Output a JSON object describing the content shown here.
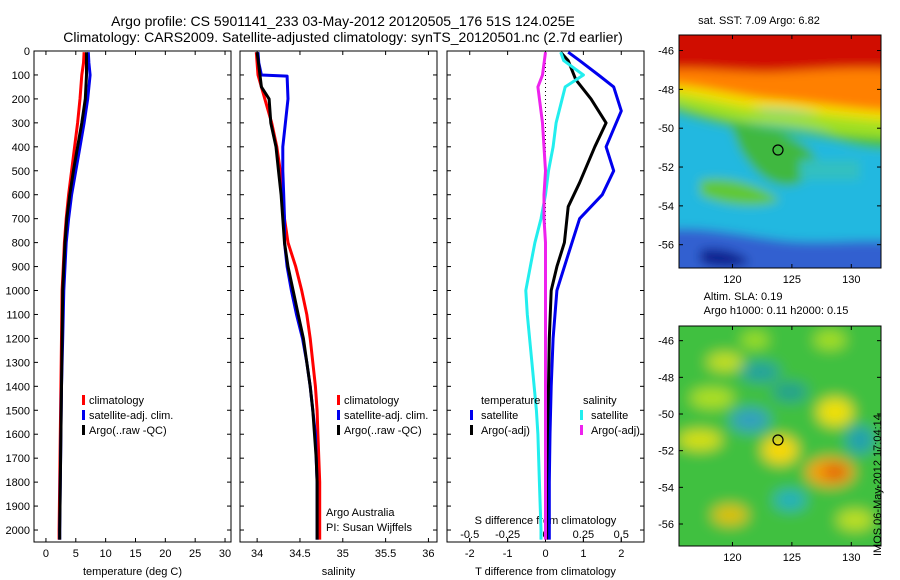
{
  "title_line1": "Argo profile: CS 5901141_233 03-May-2012 20120505_176 51S 124.025E",
  "title_line2": "Climatology: CARS2009. Satellite-adjusted climatology: synTS_20120501.nc (2.7d earlier)",
  "side_text": "IMOS 06-May-2012 17:04:14",
  "colors": {
    "red": "#ff0000",
    "blue": "#0000ee",
    "black": "#000000",
    "cyan": "#22eeee",
    "magenta": "#ee22ee"
  },
  "chart_data": [
    {
      "id": "temperature",
      "type": "line",
      "xlabel": "temperature (deg C)",
      "ylabel": "",
      "xlim": [
        -2,
        31
      ],
      "ylim": [
        2050,
        0
      ],
      "x_ticks": [
        0,
        5,
        10,
        15,
        20,
        25,
        30
      ],
      "x_tick_labels": [
        "0",
        "5",
        "10",
        "15",
        "20",
        "25",
        "30"
      ],
      "y_ticks": [
        0,
        100,
        200,
        300,
        400,
        500,
        600,
        700,
        800,
        900,
        1000,
        1100,
        1200,
        1300,
        1400,
        1500,
        1600,
        1700,
        1800,
        1900,
        2000
      ],
      "y_tick_labels": [
        "0",
        "100",
        "200",
        "300",
        "400",
        "500",
        "600",
        "700",
        "800",
        "900",
        "1000",
        "1100",
        "1200",
        "1300",
        "1400",
        "1500",
        "1600",
        "1700",
        "1800",
        "1900",
        "2000"
      ],
      "legend_position": "lower-right",
      "legend": [
        {
          "name": "climatology",
          "color": "#ff0000"
        },
        {
          "name": "satellite-adj. clim.",
          "color": "#0000ee"
        },
        {
          "name": "Argo(..raw -QC)",
          "color": "#000000"
        }
      ],
      "series": [
        {
          "name": "climatology",
          "color": "#ff0000",
          "points": [
            [
              6.4,
              5
            ],
            [
              6.3,
              50
            ],
            [
              6.0,
              100
            ],
            [
              5.7,
              200
            ],
            [
              5.3,
              300
            ],
            [
              4.8,
              400
            ],
            [
              4.3,
              500
            ],
            [
              3.8,
              600
            ],
            [
              3.4,
              700
            ],
            [
              3.1,
              800
            ],
            [
              2.9,
              900
            ],
            [
              2.7,
              1000
            ],
            [
              2.6,
              1200
            ],
            [
              2.5,
              1400
            ],
            [
              2.4,
              1600
            ],
            [
              2.3,
              1800
            ],
            [
              2.2,
              2000
            ],
            [
              2.2,
              2040
            ]
          ]
        },
        {
          "name": "satellite-adj. clim.",
          "color": "#0000ee",
          "points": [
            [
              7.1,
              5
            ],
            [
              7.2,
              50
            ],
            [
              7.4,
              100
            ],
            [
              7.0,
              200
            ],
            [
              6.4,
              300
            ],
            [
              5.7,
              400
            ],
            [
              5.0,
              500
            ],
            [
              4.3,
              600
            ],
            [
              3.8,
              700
            ],
            [
              3.4,
              800
            ],
            [
              3.2,
              900
            ],
            [
              3.0,
              1000
            ],
            [
              2.8,
              1200
            ],
            [
              2.6,
              1400
            ],
            [
              2.5,
              1600
            ],
            [
              2.4,
              1800
            ],
            [
              2.3,
              2000
            ],
            [
              2.3,
              2040
            ]
          ]
        },
        {
          "name": "Argo(..raw -QC)",
          "color": "#000000",
          "points": [
            [
              6.8,
              5
            ],
            [
              6.8,
              50
            ],
            [
              6.8,
              100
            ],
            [
              6.6,
              200
            ],
            [
              6.0,
              300
            ],
            [
              5.3,
              400
            ],
            [
              4.6,
              500
            ],
            [
              4.0,
              600
            ],
            [
              3.5,
              700
            ],
            [
              3.2,
              800
            ],
            [
              3.0,
              900
            ],
            [
              2.8,
              1000
            ],
            [
              2.7,
              1200
            ],
            [
              2.6,
              1400
            ],
            [
              2.5,
              1600
            ],
            [
              2.4,
              1800
            ],
            [
              2.3,
              2000
            ],
            [
              2.3,
              2040
            ]
          ]
        }
      ]
    },
    {
      "id": "salinity",
      "type": "line",
      "xlabel": "salinity",
      "xlim": [
        33.8,
        36.1
      ],
      "ylim": [
        2050,
        0
      ],
      "x_ticks": [
        34,
        34.5,
        35,
        35.5,
        36
      ],
      "x_tick_labels": [
        "34",
        "34.5",
        "35",
        "35.5",
        "36"
      ],
      "y_ticks": [
        0,
        100,
        200,
        300,
        400,
        500,
        600,
        700,
        800,
        900,
        1000,
        1100,
        1200,
        1300,
        1400,
        1500,
        1600,
        1700,
        1800,
        1900,
        2000
      ],
      "legend_position": "lower-right",
      "legend": [
        {
          "name": "climatology",
          "color": "#ff0000"
        },
        {
          "name": "satellite-adj. clim.",
          "color": "#0000ee"
        },
        {
          "name": "Argo(..raw -QC)",
          "color": "#000000"
        }
      ],
      "annotation": [
        "Argo Australia",
        "PI: Susan Wijffels"
      ],
      "series": [
        {
          "name": "climatology",
          "color": "#ff0000",
          "points": [
            [
              33.99,
              5
            ],
            [
              34.01,
              100
            ],
            [
              34.09,
              200
            ],
            [
              34.17,
              300
            ],
            [
              34.23,
              400
            ],
            [
              34.27,
              500
            ],
            [
              34.29,
              600
            ],
            [
              34.32,
              700
            ],
            [
              34.36,
              800
            ],
            [
              34.45,
              900
            ],
            [
              34.52,
              1000
            ],
            [
              34.58,
              1100
            ],
            [
              34.62,
              1200
            ],
            [
              34.65,
              1300
            ],
            [
              34.68,
              1400
            ],
            [
              34.7,
              1500
            ],
            [
              34.71,
              1600
            ],
            [
              34.72,
              1700
            ],
            [
              34.73,
              1800
            ],
            [
              34.73,
              1900
            ],
            [
              34.73,
              2000
            ],
            [
              34.73,
              2040
            ]
          ]
        },
        {
          "name": "satellite-adj. clim.",
          "color": "#0000ee",
          "points": [
            [
              34.01,
              5
            ],
            [
              34.02,
              50
            ],
            [
              34.05,
              100
            ],
            [
              34.35,
              105
            ],
            [
              34.36,
              200
            ],
            [
              34.33,
              300
            ],
            [
              34.3,
              400
            ],
            [
              34.3,
              500
            ],
            [
              34.31,
              600
            ],
            [
              34.32,
              700
            ],
            [
              34.32,
              800
            ],
            [
              34.35,
              900
            ],
            [
              34.4,
              1000
            ],
            [
              34.46,
              1100
            ],
            [
              34.53,
              1200
            ],
            [
              34.58,
              1300
            ],
            [
              34.62,
              1400
            ],
            [
              34.65,
              1500
            ],
            [
              34.68,
              1600
            ],
            [
              34.69,
              1700
            ],
            [
              34.7,
              1800
            ],
            [
              34.7,
              1900
            ],
            [
              34.7,
              2000
            ],
            [
              34.7,
              2040
            ]
          ]
        },
        {
          "name": "Argo(..raw -QC)",
          "color": "#000000",
          "points": [
            [
              34.0,
              5
            ],
            [
              34.02,
              60
            ],
            [
              34.05,
              150
            ],
            [
              34.14,
              200
            ],
            [
              34.16,
              300
            ],
            [
              34.22,
              400
            ],
            [
              34.25,
              500
            ],
            [
              34.28,
              600
            ],
            [
              34.3,
              700
            ],
            [
              34.32,
              800
            ],
            [
              34.36,
              900
            ],
            [
              34.42,
              1000
            ],
            [
              34.48,
              1100
            ],
            [
              34.54,
              1200
            ],
            [
              34.58,
              1300
            ],
            [
              34.62,
              1400
            ],
            [
              34.65,
              1500
            ],
            [
              34.67,
              1600
            ],
            [
              34.69,
              1700
            ],
            [
              34.7,
              1800
            ],
            [
              34.7,
              1900
            ],
            [
              34.7,
              2000
            ],
            [
              34.7,
              2040
            ]
          ]
        }
      ]
    },
    {
      "id": "difference",
      "type": "line",
      "xlabel": "T difference from climatology",
      "top_axis_label": "S difference from climatology",
      "xlim": [
        -2.6,
        2.6
      ],
      "ylim": [
        2050,
        0
      ],
      "x_ticks": [
        -2,
        -1,
        0,
        1,
        2
      ],
      "x_tick_labels": [
        "-2",
        "-1",
        "0",
        "1",
        "2"
      ],
      "s_ticks": [
        -0.5,
        -0.25,
        0,
        0.25,
        0.5
      ],
      "s_tick_labels": [
        "-0.5",
        "-0.25",
        "0",
        "0.25",
        "0.5"
      ],
      "zero_line": true,
      "legend_position": "lower-center",
      "legend_groups": [
        {
          "title": "temperature",
          "items": [
            {
              "name": "satellite",
              "color": "#0000ee"
            },
            {
              "name": "Argo(-adj)",
              "color": "#000000"
            }
          ]
        },
        {
          "title": "salinity",
          "items": [
            {
              "name": "satellite",
              "color": "#22eeee"
            },
            {
              "name": "Argo(-adj)",
              "color": "#ee22ee"
            }
          ]
        }
      ],
      "series": [
        {
          "name": "temperature satellite",
          "color": "#0000ee",
          "units": "T",
          "points": [
            [
              0.6,
              5
            ],
            [
              0.9,
              40
            ],
            [
              1.4,
              100
            ],
            [
              1.8,
              150
            ],
            [
              2.0,
              250
            ],
            [
              1.6,
              400
            ],
            [
              1.8,
              500
            ],
            [
              1.5,
              600
            ],
            [
              0.9,
              700
            ],
            [
              0.6,
              850
            ],
            [
              0.3,
              1000
            ],
            [
              0.2,
              1200
            ],
            [
              0.15,
              1400
            ],
            [
              0.12,
              1600
            ],
            [
              0.1,
              1800
            ],
            [
              0.1,
              2000
            ],
            [
              0.1,
              2040
            ]
          ]
        },
        {
          "name": "temperature Argo(-adj)",
          "color": "#000000",
          "units": "T",
          "points": [
            [
              0.4,
              5
            ],
            [
              0.6,
              40
            ],
            [
              0.8,
              120
            ],
            [
              1.2,
              200
            ],
            [
              1.6,
              300
            ],
            [
              1.3,
              400
            ],
            [
              0.9,
              550
            ],
            [
              0.6,
              650
            ],
            [
              0.5,
              800
            ],
            [
              0.3,
              900
            ],
            [
              0.15,
              1000
            ],
            [
              0.1,
              1200
            ],
            [
              0.08,
              1400
            ],
            [
              0.05,
              1600
            ],
            [
              0.03,
              1800
            ],
            [
              0.03,
              2000
            ],
            [
              0.03,
              2040
            ]
          ]
        },
        {
          "name": "salinity satellite",
          "color": "#22eeee",
          "units": "S",
          "points": [
            [
              0.1,
              5
            ],
            [
              0.12,
              40
            ],
            [
              0.25,
              100
            ],
            [
              0.13,
              150
            ],
            [
              0.07,
              300
            ],
            [
              0.05,
              400
            ],
            [
              0.02,
              500
            ],
            [
              0.0,
              600
            ],
            [
              -0.03,
              700
            ],
            [
              -0.07,
              800
            ],
            [
              -0.1,
              900
            ],
            [
              -0.13,
              1000
            ],
            [
              -0.12,
              1100
            ],
            [
              -0.09,
              1300
            ],
            [
              -0.06,
              1500
            ],
            [
              -0.05,
              1600
            ],
            [
              -0.04,
              1800
            ],
            [
              -0.03,
              2000
            ],
            [
              -0.03,
              2040
            ]
          ]
        },
        {
          "name": "salinity Argo(-adj)",
          "color": "#ee22ee",
          "units": "S",
          "points": [
            [
              0.0,
              5
            ],
            [
              -0.02,
              100
            ],
            [
              -0.05,
              150
            ],
            [
              -0.02,
              300
            ],
            [
              -0.01,
              400
            ],
            [
              0.0,
              500
            ],
            [
              -0.01,
              600
            ],
            [
              -0.01,
              700
            ],
            [
              0.0,
              800
            ],
            [
              0.0,
              1000
            ],
            [
              0.0,
              1200
            ],
            [
              0.0,
              1400
            ],
            [
              0.0,
              1600
            ],
            [
              0.0,
              1800
            ],
            [
              0.0,
              2000
            ],
            [
              0.0,
              2040
            ]
          ]
        }
      ]
    },
    {
      "id": "sst_map",
      "type": "heatmap",
      "title": "sat. SST: 7.09  Argo: 6.82",
      "xlim": [
        115.5,
        132.5
      ],
      "ylim": [
        -57.2,
        -45.2
      ],
      "x_ticks": [
        120,
        125,
        130
      ],
      "x_tick_labels": [
        "120",
        "125",
        "130"
      ],
      "y_ticks": [
        -46,
        -48,
        -50,
        -52,
        -54,
        -56
      ],
      "y_tick_labels": [
        "-46",
        "-48",
        "-50",
        "-52",
        "-54",
        "-56"
      ],
      "marker": {
        "lon": 124.025,
        "lat": -51.0
      }
    },
    {
      "id": "sla_map",
      "type": "heatmap",
      "title": "Altim. SLA: 0.19",
      "subtitle": "Argo h1000: 0.11  h2000: 0.15",
      "xlim": [
        115.5,
        132.5
      ],
      "ylim": [
        -57.2,
        -45.2
      ],
      "x_ticks": [
        120,
        125,
        130
      ],
      "x_tick_labels": [
        "120",
        "125",
        "130"
      ],
      "y_ticks": [
        -46,
        -48,
        -50,
        -52,
        -54,
        -56
      ],
      "y_tick_labels": [
        "-46",
        "-48",
        "-50",
        "-52",
        "-54",
        "-56"
      ],
      "marker": {
        "lon": 124.025,
        "lat": -51.0
      }
    }
  ]
}
